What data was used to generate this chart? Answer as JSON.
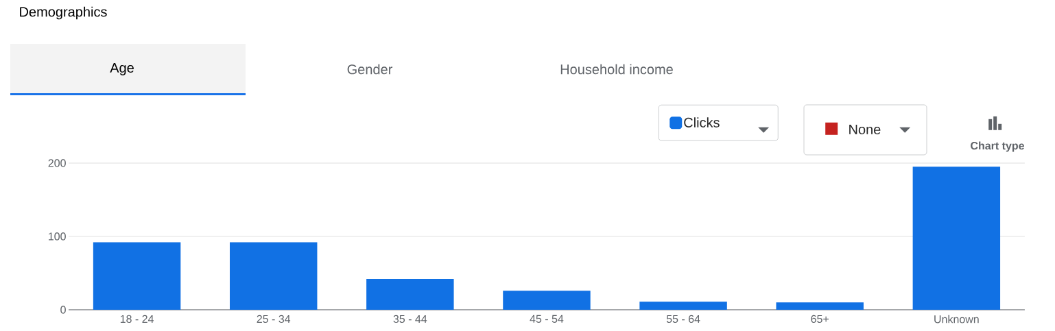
{
  "chart_data": {
    "type": "bar",
    "title": "Demographics",
    "categories": [
      "18 - 24",
      "25 - 34",
      "35 - 44",
      "45 - 54",
      "55 - 64",
      "65+",
      "Unknown"
    ],
    "series": [
      {
        "name": "Clicks",
        "color": "#1171e4",
        "values": [
          92,
          92,
          42,
          26,
          11,
          10,
          195
        ]
      }
    ],
    "ylim": [
      0,
      200
    ],
    "yticks": [
      0,
      100,
      200
    ],
    "grid": "y",
    "legend": "top right",
    "annotations": [
      "Age",
      "Gender",
      "Household income",
      "None",
      "Chart type"
    ]
  }
}
